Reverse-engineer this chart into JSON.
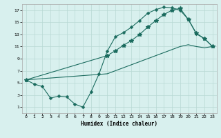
{
  "title": "",
  "xlabel": "Humidex (Indice chaleur)",
  "bg_color": "#d8f0ee",
  "line_color": "#1a6b5e",
  "grid_color": "#b8d8d4",
  "xlim": [
    -0.5,
    23.5
  ],
  "ylim": [
    0,
    18
  ],
  "xticks": [
    0,
    1,
    2,
    3,
    4,
    5,
    6,
    7,
    8,
    9,
    10,
    11,
    12,
    13,
    14,
    15,
    16,
    17,
    18,
    19,
    20,
    21,
    22,
    23
  ],
  "yticks": [
    1,
    3,
    5,
    7,
    9,
    11,
    13,
    15,
    17
  ],
  "line1_x": [
    0,
    1,
    2,
    3,
    4,
    5,
    6,
    7,
    8,
    9,
    10,
    11,
    12,
    13,
    14,
    15,
    16,
    17,
    18,
    19,
    20,
    21,
    22,
    23
  ],
  "line1_y": [
    5.5,
    4.8,
    4.4,
    2.5,
    2.8,
    2.7,
    1.5,
    1.0,
    3.5,
    6.5,
    10.2,
    12.6,
    13.3,
    14.2,
    15.3,
    16.5,
    17.1,
    17.5,
    17.4,
    17.0,
    15.5,
    13.1,
    12.3,
    11.0
  ],
  "line2_x": [
    0,
    10,
    11,
    12,
    13,
    14,
    15,
    16,
    17,
    18,
    19,
    20,
    21,
    22,
    23
  ],
  "line2_y": [
    5.5,
    9.5,
    10.3,
    11.2,
    12.0,
    13.0,
    14.2,
    15.3,
    16.3,
    17.0,
    17.3,
    15.5,
    13.2,
    12.3,
    11.0
  ],
  "line3_x": [
    0,
    10,
    11,
    12,
    13,
    14,
    15,
    16,
    17,
    18,
    19,
    20,
    21,
    22,
    23
  ],
  "line3_y": [
    5.5,
    6.5,
    7.0,
    7.5,
    8.0,
    8.5,
    9.0,
    9.5,
    10.0,
    10.5,
    11.0,
    11.3,
    11.0,
    10.8,
    11.0
  ]
}
